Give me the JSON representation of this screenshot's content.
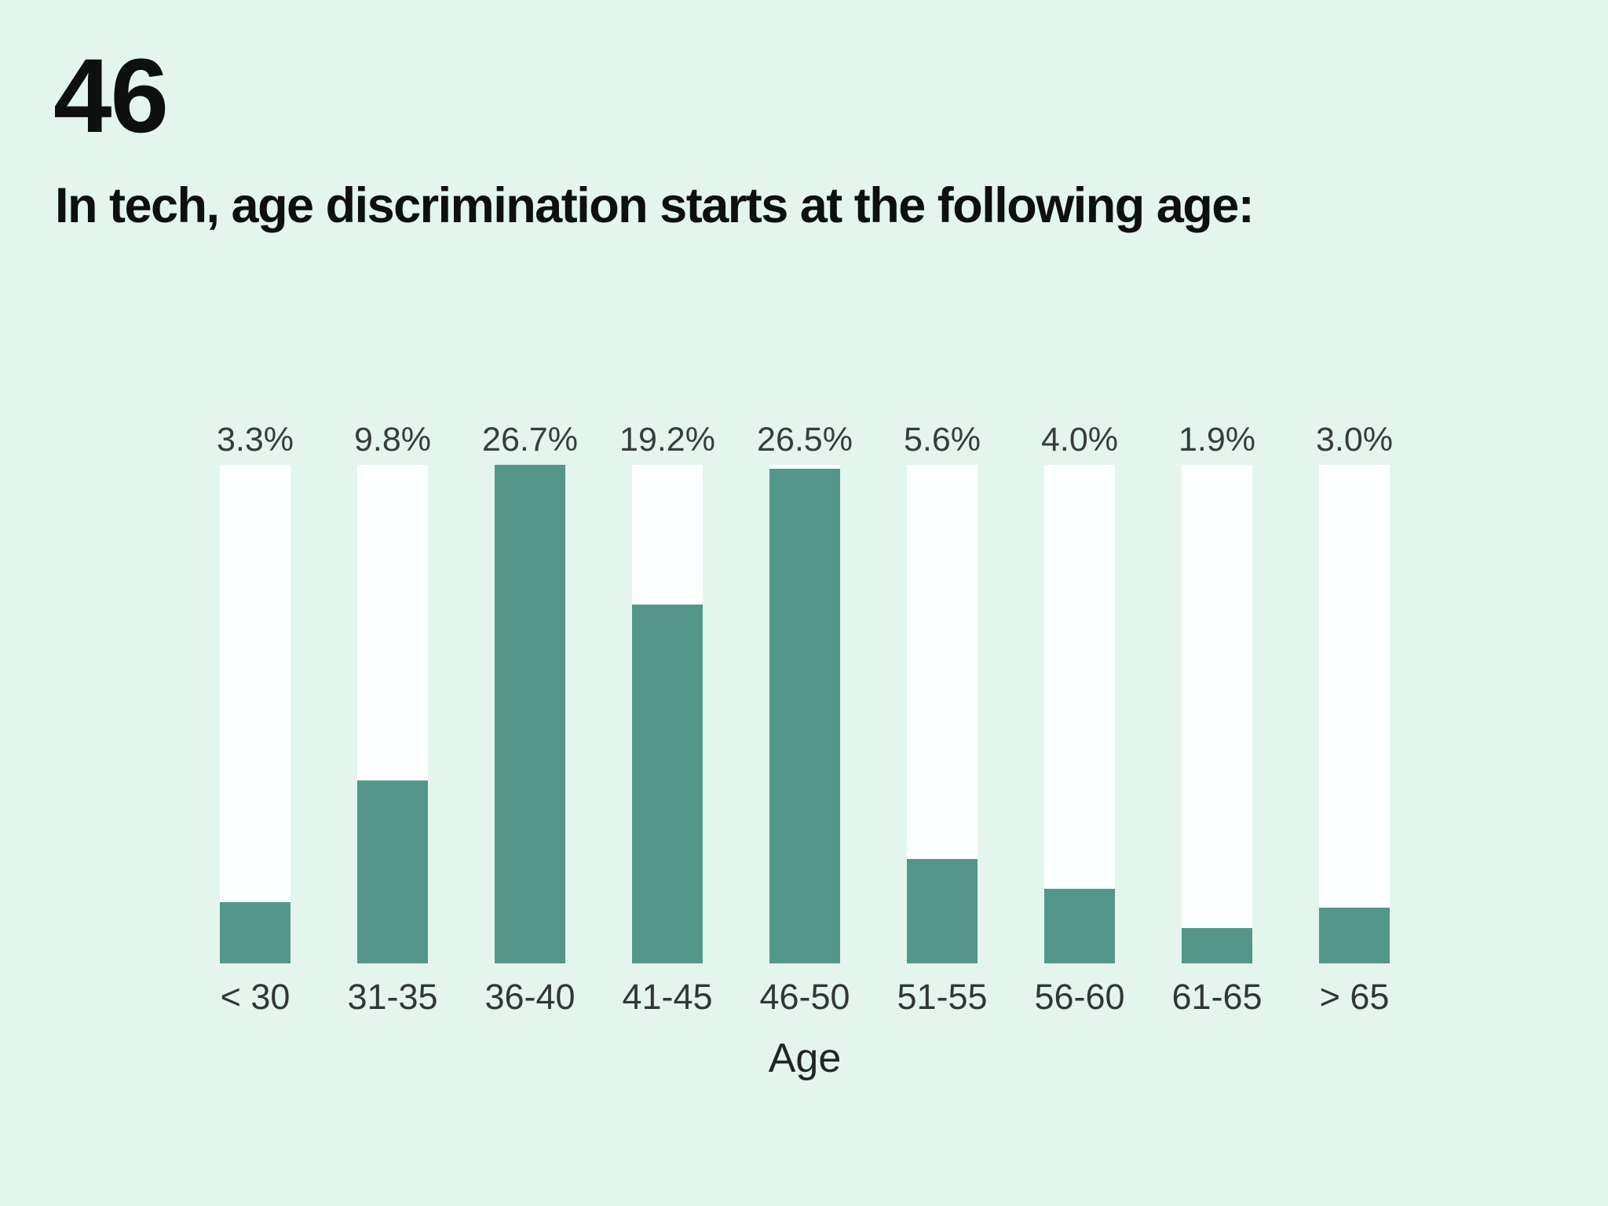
{
  "page": {
    "background_color": "#e4f5ee"
  },
  "header": {
    "number": "46",
    "title": "In tech, age discrimination starts at the following age:"
  },
  "chart_data": {
    "type": "bar",
    "title": "In tech, age discrimination starts at the following age:",
    "categories": [
      "< 30",
      "31-35",
      "36-40",
      "41-45",
      "46-50",
      "51-55",
      "56-60",
      "61-65",
      "> 65"
    ],
    "values": [
      3.3,
      9.8,
      26.7,
      19.2,
      26.5,
      5.6,
      4.0,
      1.9,
      3.0
    ],
    "value_labels": [
      "3.3%",
      "9.8%",
      "26.7%",
      "19.2%",
      "26.5%",
      "5.6%",
      "4.0%",
      "1.9%",
      "3.0%"
    ],
    "xlabel": "Age",
    "ylabel": "",
    "ylim": [
      0,
      26.7
    ],
    "grid": false,
    "legend": false,
    "bar_color": "#54978a",
    "track_color": "#fdfffe",
    "style_note": "each category drawn as full-height white track with teal fill from bottom scaled so max value (26.7%) fills the track"
  }
}
